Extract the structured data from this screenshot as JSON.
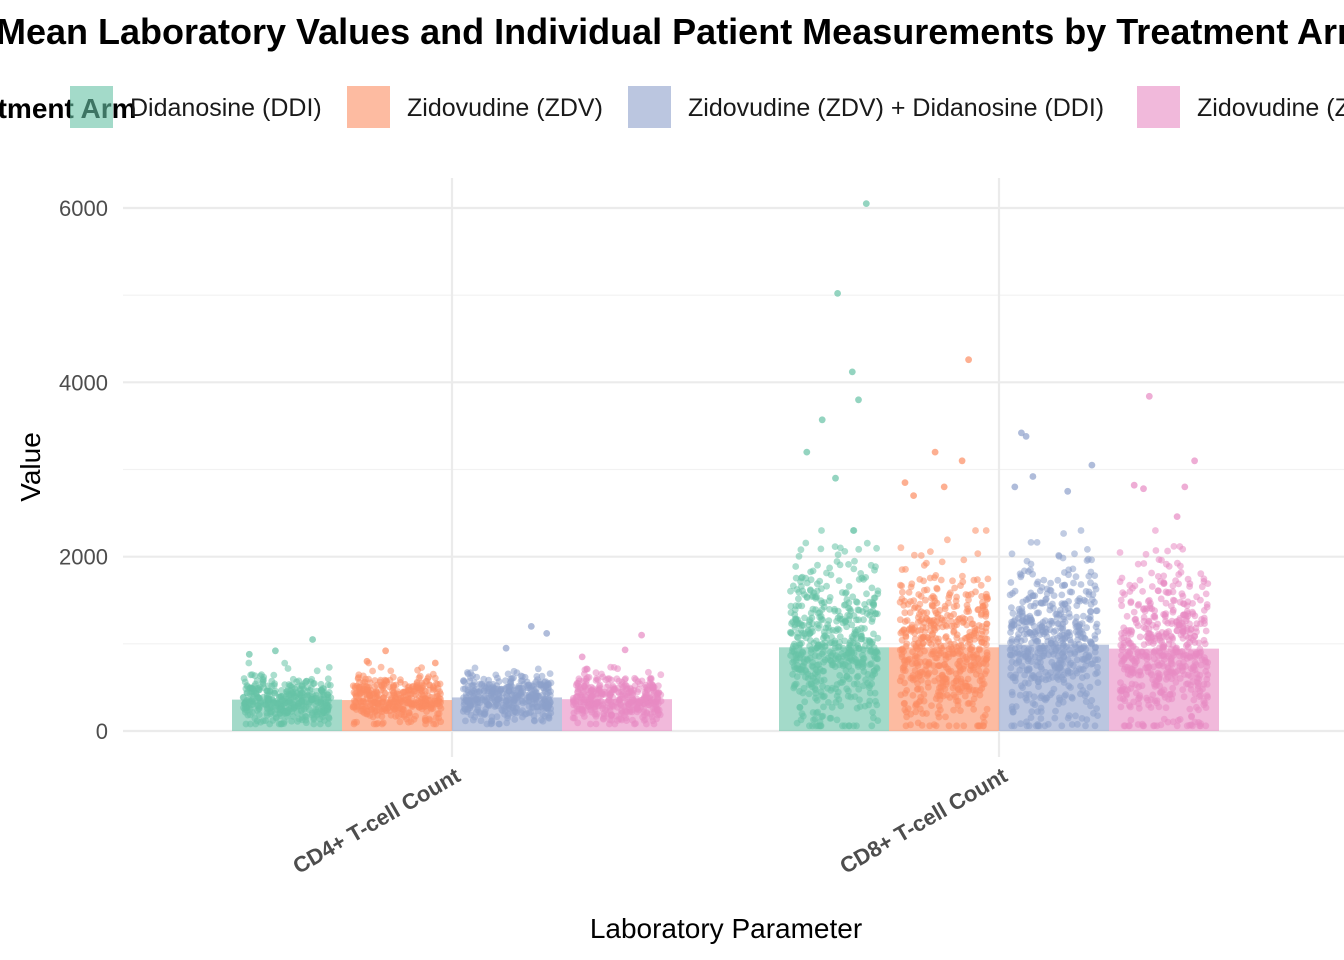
{
  "chart_data": {
    "type": "bar",
    "title": "Mean Laboratory Values and Individual Patient Measurements by Treatment Arm",
    "xlabel": "Laboratory Parameter",
    "ylabel": "Value",
    "legend_title": "Treatment Arm",
    "legend_position": "top",
    "categories": [
      "CD4+ T-cell Count",
      "CD8+ T-cell Count"
    ],
    "yticks": [
      0,
      2000,
      4000,
      6000
    ],
    "ylim": [
      -50,
      6350
    ],
    "grid": true,
    "series": [
      {
        "name": "Didanosine (DDI)",
        "color": "#66c2a5",
        "values": [
          360,
          960
        ]
      },
      {
        "name": "Zidovudine (ZDV)",
        "color": "#fc8d62",
        "values": [
          355,
          960
        ]
      },
      {
        "name": "Zidovudine (ZDV) + Didanosine (DDI)",
        "color": "#8da0cb",
        "values": [
          385,
          990
        ]
      },
      {
        "name": "Zidovudine (ZDV) + Zalcitabine (ddC)",
        "color": "#e78ac3",
        "values": [
          365,
          945
        ]
      }
    ],
    "points_overlay": {
      "description_kind": "jittered individual patient measurements",
      "spread": [
        {
          "category": "CD4+ T-cell Count",
          "typical_range": [
            150,
            700
          ],
          "outliers": [
            [
              1050,
              920,
              880
            ],
            [
              920,
              800,
              780
            ],
            [
              1200,
              1120,
              950
            ],
            [
              1100,
              930,
              850
            ]
          ]
        },
        {
          "category": "CD8+ T-cell Count",
          "typical_range": [
            300,
            1900
          ],
          "outliers": [
            [
              6050,
              5020,
              4120,
              3800,
              3570,
              3200,
              2900
            ],
            [
              4260,
              3200,
              3100,
              2850,
              2800,
              2700
            ],
            [
              3420,
              3380,
              3050,
              2920,
              2800,
              2750
            ],
            [
              3840,
              3100,
              2820,
              2800,
              2780,
              2460
            ]
          ]
        }
      ]
    }
  }
}
